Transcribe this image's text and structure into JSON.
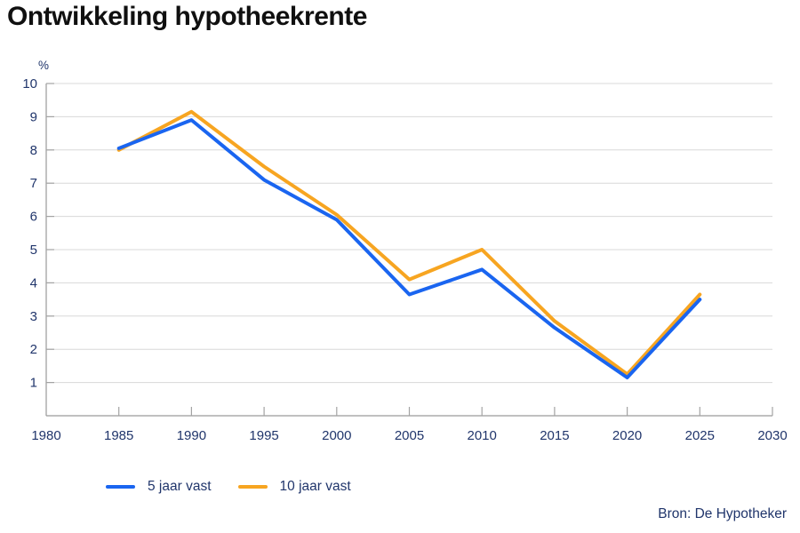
{
  "colors": {
    "series_blue": "#1A65F0",
    "series_orange": "#F7A521",
    "axis_text": "#20356B",
    "title_text": "#101010",
    "gridline": "#D8D8D8",
    "tick": "#A3A3A3",
    "axis_line": "#9A9A9A"
  },
  "chart_data": {
    "type": "line",
    "title": "Ontwikkeling hypotheekrente",
    "ylabel": "%",
    "xlabel": "",
    "x": [
      1985,
      1990,
      1995,
      2000,
      2005,
      2010,
      2015,
      2020,
      2025
    ],
    "series": [
      {
        "name": "5 jaar vast",
        "color": "#1A65F0",
        "values": [
          8.05,
          8.9,
          7.1,
          5.9,
          3.65,
          4.4,
          2.65,
          1.15,
          3.5
        ]
      },
      {
        "name": "10 jaar vast",
        "color": "#F7A521",
        "values": [
          8.0,
          9.15,
          7.5,
          6.05,
          4.1,
          5.0,
          2.85,
          1.25,
          3.65
        ]
      }
    ],
    "xlim": [
      1980,
      2030
    ],
    "ylim": [
      0,
      10
    ],
    "x_ticks": [
      1980,
      1985,
      1990,
      1995,
      2000,
      2005,
      2010,
      2015,
      2020,
      2025,
      2030
    ],
    "y_ticks": [
      1,
      2,
      3,
      4,
      5,
      6,
      7,
      8,
      9,
      10
    ],
    "grid": "horizontal",
    "line_width": 4,
    "legend_position": "bottom-left",
    "source": "Bron: De Hypotheker"
  }
}
